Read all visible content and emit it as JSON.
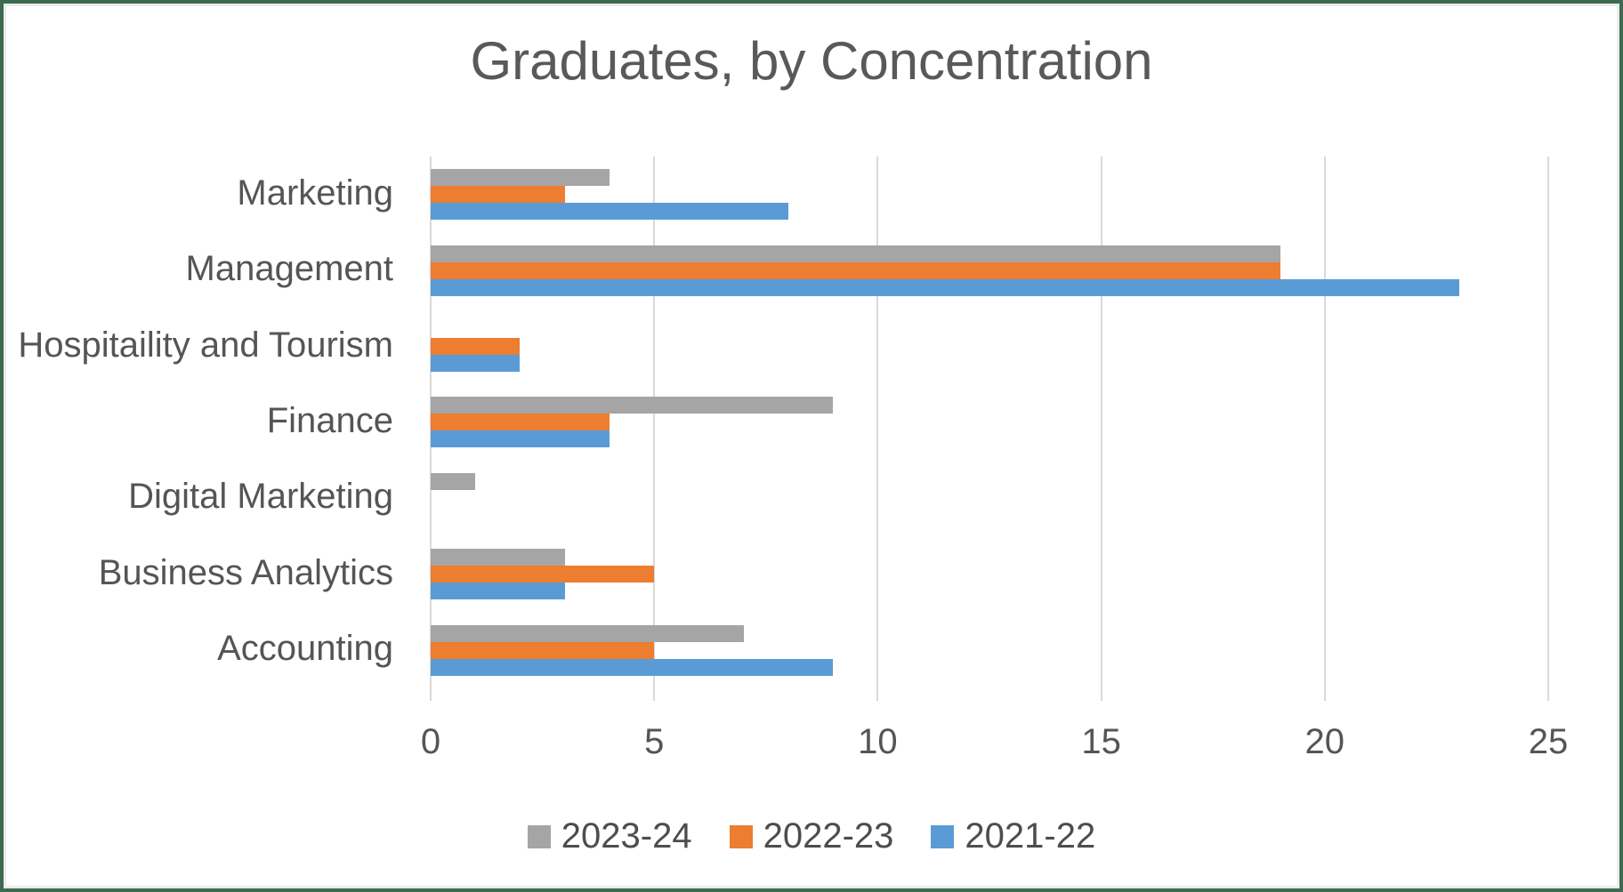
{
  "chart_data": {
    "type": "bar",
    "orientation": "horizontal",
    "title": "Graduates, by Concentration",
    "categories": [
      "Marketing",
      "Management",
      "Hospitaility and Tourism",
      "Finance",
      "Digital Marketing",
      "Business Analytics",
      "Accounting"
    ],
    "series": [
      {
        "name": "2023-24",
        "color": "#a5a5a5",
        "values": [
          4,
          19,
          0,
          9,
          1,
          3,
          7
        ]
      },
      {
        "name": "2022-23",
        "color": "#ed7d31",
        "values": [
          3,
          19,
          2,
          4,
          0,
          5,
          5
        ]
      },
      {
        "name": "2021-22",
        "color": "#5b9bd5",
        "values": [
          8,
          23,
          2,
          4,
          0,
          3,
          9
        ]
      }
    ],
    "xlabel": "",
    "ylabel": "",
    "xlim": [
      0,
      25
    ],
    "x_ticks": [
      0,
      5,
      10,
      15,
      20,
      25
    ],
    "x_tick_labels": [
      "0",
      "5",
      "10",
      "15",
      "20",
      "25"
    ],
    "grid": true,
    "legend_position": "bottom",
    "colors": {
      "title_text": "#595959",
      "axis_text": "#555555",
      "gridline": "#d9d9d9",
      "frame_border": "#3e6b50",
      "background": "#ffffff"
    }
  }
}
